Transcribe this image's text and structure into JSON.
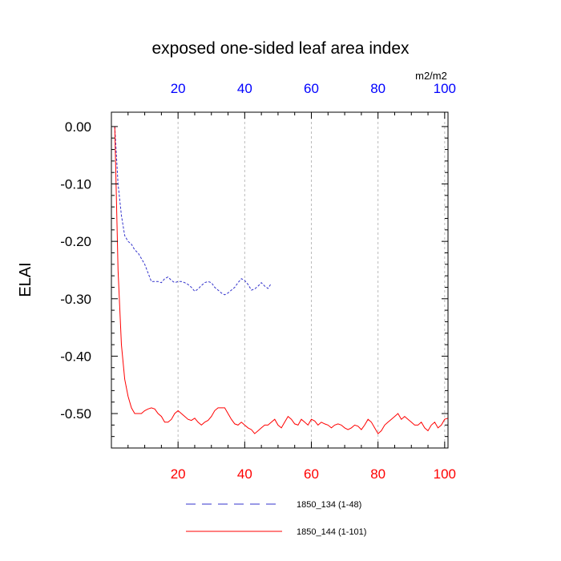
{
  "chart_data": {
    "type": "line",
    "title": "exposed one-sided leaf area index",
    "ylabel": "ELAI",
    "units_label": "m2/m2",
    "ylim": [
      -0.56,
      0.025
    ],
    "yticks": [
      0.0,
      -0.1,
      -0.2,
      -0.3,
      -0.4,
      -0.5
    ],
    "ytick_labels": [
      "0.00",
      "-0.10",
      "-0.20",
      "-0.30",
      "-0.40",
      "-0.50"
    ],
    "xlim": [
      0,
      101
    ],
    "xticks": [
      20,
      40,
      60,
      80,
      100
    ],
    "xtick_labels": [
      "20",
      "40",
      "60",
      "80",
      "100"
    ],
    "grid": "x-dashed",
    "axes": {
      "top_color": "#0000ff",
      "bottom_color": "#ff0000"
    },
    "series": [
      {
        "name": "1850_134 (1-48)",
        "color": "#3333cc",
        "dash": "dashed",
        "x": [
          1,
          2,
          3,
          4,
          5,
          6,
          7,
          8,
          9,
          10,
          11,
          12,
          13,
          14,
          15,
          16,
          17,
          18,
          19,
          20,
          21,
          22,
          23,
          24,
          25,
          26,
          27,
          28,
          29,
          30,
          31,
          32,
          33,
          34,
          35,
          36,
          37,
          38,
          39,
          40,
          41,
          42,
          43,
          44,
          45,
          46,
          47,
          48
        ],
        "y": [
          0.0,
          -0.1,
          -0.155,
          -0.19,
          -0.2,
          -0.205,
          -0.215,
          -0.22,
          -0.23,
          -0.24,
          -0.255,
          -0.27,
          -0.27,
          -0.27,
          -0.272,
          -0.265,
          -0.262,
          -0.268,
          -0.272,
          -0.27,
          -0.27,
          -0.272,
          -0.275,
          -0.28,
          -0.287,
          -0.283,
          -0.277,
          -0.272,
          -0.27,
          -0.272,
          -0.28,
          -0.285,
          -0.29,
          -0.293,
          -0.29,
          -0.285,
          -0.28,
          -0.272,
          -0.265,
          -0.268,
          -0.275,
          -0.285,
          -0.283,
          -0.278,
          -0.272,
          -0.278,
          -0.282,
          -0.273
        ]
      },
      {
        "name": "1850_144 (1-101)",
        "color": "#ff0000",
        "dash": "solid",
        "x": [
          1,
          2,
          3,
          4,
          5,
          6,
          7,
          8,
          9,
          10,
          11,
          12,
          13,
          14,
          15,
          16,
          17,
          18,
          19,
          20,
          21,
          22,
          23,
          24,
          25,
          26,
          27,
          28,
          29,
          30,
          31,
          32,
          33,
          34,
          35,
          36,
          37,
          38,
          39,
          40,
          41,
          42,
          43,
          44,
          45,
          46,
          47,
          48,
          49,
          50,
          51,
          52,
          53,
          54,
          55,
          56,
          57,
          58,
          59,
          60,
          61,
          62,
          63,
          64,
          65,
          66,
          67,
          68,
          69,
          70,
          71,
          72,
          73,
          74,
          75,
          76,
          77,
          78,
          79,
          80,
          81,
          82,
          83,
          84,
          85,
          86,
          87,
          88,
          89,
          90,
          91,
          92,
          93,
          94,
          95,
          96,
          97,
          98,
          99,
          100,
          101
        ],
        "y": [
          0.0,
          -0.25,
          -0.38,
          -0.44,
          -0.47,
          -0.49,
          -0.5,
          -0.5,
          -0.5,
          -0.495,
          -0.492,
          -0.49,
          -0.492,
          -0.5,
          -0.505,
          -0.515,
          -0.515,
          -0.51,
          -0.5,
          -0.495,
          -0.5,
          -0.505,
          -0.51,
          -0.512,
          -0.508,
          -0.515,
          -0.52,
          -0.515,
          -0.512,
          -0.505,
          -0.495,
          -0.49,
          -0.49,
          -0.49,
          -0.5,
          -0.51,
          -0.518,
          -0.52,
          -0.515,
          -0.52,
          -0.525,
          -0.528,
          -0.535,
          -0.53,
          -0.525,
          -0.52,
          -0.52,
          -0.515,
          -0.51,
          -0.52,
          -0.525,
          -0.515,
          -0.505,
          -0.51,
          -0.518,
          -0.52,
          -0.51,
          -0.515,
          -0.52,
          -0.51,
          -0.513,
          -0.52,
          -0.515,
          -0.518,
          -0.52,
          -0.525,
          -0.52,
          -0.518,
          -0.52,
          -0.525,
          -0.528,
          -0.525,
          -0.52,
          -0.522,
          -0.528,
          -0.52,
          -0.51,
          -0.515,
          -0.525,
          -0.535,
          -0.53,
          -0.52,
          -0.515,
          -0.51,
          -0.505,
          -0.5,
          -0.51,
          -0.505,
          -0.51,
          -0.515,
          -0.52,
          -0.52,
          -0.515,
          -0.525,
          -0.53,
          -0.52,
          -0.515,
          -0.525,
          -0.52,
          -0.51,
          -0.508
        ]
      }
    ]
  }
}
